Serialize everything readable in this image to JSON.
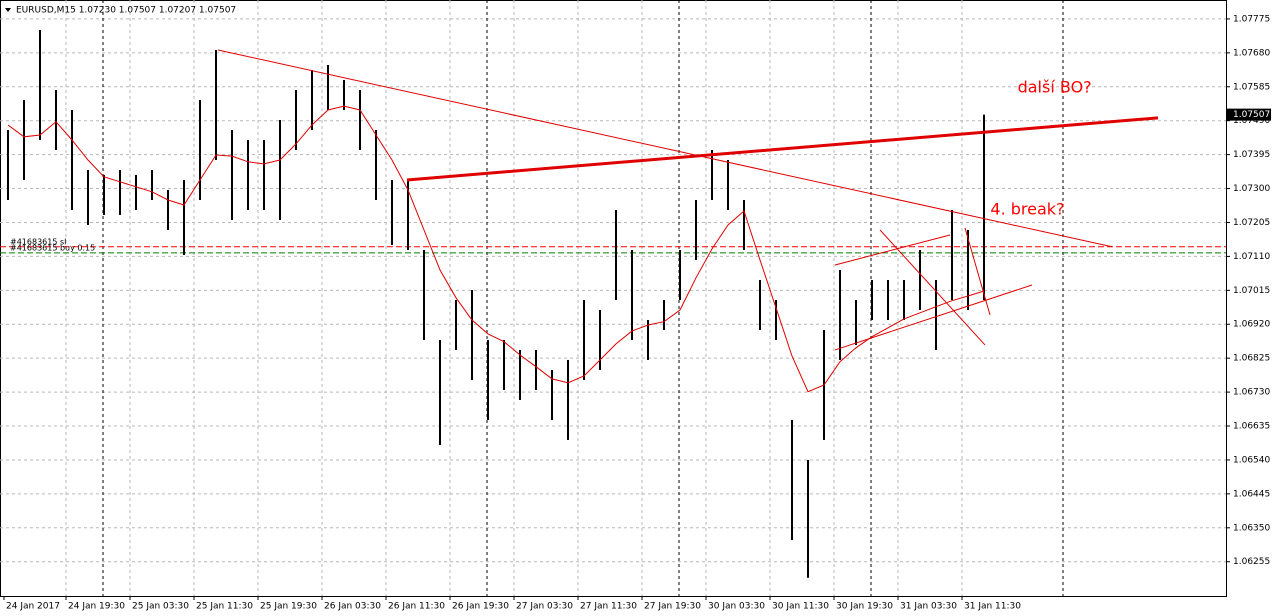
{
  "chart_data": {
    "type": "hilo",
    "title": "EURUSD,M15  1.07230 1.07507 1.07207 1.07507",
    "bar_color": "#000000",
    "high": [
      1.07464,
      1.07548,
      1.07744,
      1.07576,
      1.0752,
      1.07352,
      1.07338,
      1.07352,
      1.07338,
      1.07352,
      1.07296,
      1.07324,
      1.07548,
      1.07688,
      1.07464,
      1.07436,
      1.07436,
      1.07492,
      1.07576,
      1.07632,
      1.07646,
      1.07604,
      1.07576,
      1.07464,
      1.07324,
      1.07324,
      1.07128,
      1.06876,
      1.06988,
      1.07016,
      1.06876,
      1.06876,
      1.06848,
      1.06848,
      1.06792,
      1.0682,
      1.06988,
      1.0696,
      1.0724,
      1.07128,
      1.06932,
      1.06988,
      1.07128,
      1.07268,
      1.07408,
      1.0738,
      1.07268,
      1.07044,
      1.06988,
      1.06652,
      1.0654,
      1.06904,
      1.07072,
      1.06988,
      1.07044,
      1.07044,
      1.07044,
      1.07128,
      1.07044,
      1.0724,
      1.07184,
      1.07507
    ],
    "low": [
      1.07268,
      1.07324,
      1.07436,
      1.07408,
      1.0724,
      1.07198,
      1.07226,
      1.07226,
      1.0724,
      1.07268,
      1.07184,
      1.07114,
      1.07268,
      1.0738,
      1.07212,
      1.0724,
      1.0724,
      1.07212,
      1.07408,
      1.07464,
      1.0752,
      1.0752,
      1.07408,
      1.07268,
      1.07142,
      1.07128,
      1.06876,
      1.06582,
      1.06848,
      1.06764,
      1.06652,
      1.06736,
      1.06708,
      1.06736,
      1.06652,
      1.06596,
      1.06764,
      1.06792,
      1.06988,
      1.06876,
      1.0682,
      1.06904,
      1.06988,
      1.071,
      1.07268,
      1.0724,
      1.07128,
      1.06904,
      1.06876,
      1.06316,
      1.0621,
      1.06596,
      1.0682,
      1.06862,
      1.06932,
      1.06932,
      1.06932,
      1.0696,
      1.06848,
      1.06988,
      1.0696,
      1.06988
    ],
    "ma": {
      "color": "#e00000",
      "values": [
        1.07478,
        1.07445,
        1.0745,
        1.07487,
        1.07436,
        1.0738,
        1.07333,
        1.07319,
        1.07305,
        1.07291,
        1.07268,
        1.07254,
        1.07324,
        1.07394,
        1.07391,
        1.07375,
        1.07369,
        1.0738,
        1.07425,
        1.07478,
        1.0752,
        1.07531,
        1.0752,
        1.0745,
        1.0738,
        1.07296,
        1.07184,
        1.07072,
        1.06994,
        1.06932,
        1.06893,
        1.06871,
        1.06834,
        1.06801,
        1.06767,
        1.06756,
        1.06775,
        1.0682,
        1.06865,
        1.06901,
        1.06918,
        1.06927,
        1.0696,
        1.0705,
        1.07131,
        1.07198,
        1.07237,
        1.071,
        1.06966,
        1.06831,
        1.06731,
        1.0675,
        1.06815,
        1.06854,
        1.06885,
        1.0691,
        1.06935,
        1.06952,
        1.06969,
        1.06986,
        1.06999,
        1.07013
      ]
    },
    "xlim": [
      -0.5,
      76.125
    ],
    "ylim": [
      1.06159,
      1.07828
    ],
    "yticks": [
      1.07775,
      {
        "value": 1.0768,
        "label": "1.07680"
      },
      1.07585,
      {
        "value": 1.0749,
        "label": "1.07490"
      },
      1.07395,
      {
        "value": 1.073,
        "label": "1.07300"
      },
      1.07205,
      {
        "value": 1.0711,
        "label": "1.07110"
      },
      1.07015,
      {
        "value": 1.0692,
        "label": "1.06920"
      },
      1.06825,
      {
        "value": 1.0673,
        "label": "1.06730"
      },
      1.06635,
      {
        "value": 1.0654,
        "label": "1.06540"
      },
      1.06445,
      {
        "value": 1.0635,
        "label": "1.06350"
      },
      1.06255
    ],
    "xticks": [
      {
        "value": -0.25,
        "label": "24 Jan 2017"
      },
      {
        "value": 3.625,
        "label": "24 Jan 19:30"
      },
      {
        "value": 7.625,
        "label": "25 Jan 03:30"
      },
      {
        "value": 11.625,
        "label": "25 Jan 11:30"
      },
      {
        "value": 15.625,
        "label": "25 Jan 19:30"
      },
      {
        "value": 19.625,
        "label": "26 Jan 03:30"
      },
      {
        "value": 23.625,
        "label": "26 Jan 11:30"
      },
      {
        "value": 27.625,
        "label": "26 Jan 19:30"
      },
      {
        "value": 31.625,
        "label": "27 Jan 03:30"
      },
      {
        "value": 35.625,
        "label": "27 Jan 11:30"
      },
      {
        "value": 39.625,
        "label": "27 Jan 19:30"
      },
      {
        "value": 43.625,
        "label": "30 Jan 03:30"
      },
      {
        "value": 47.625,
        "label": "30 Jan 11:30"
      },
      {
        "value": 51.625,
        "label": "30 Jan 19:30"
      },
      {
        "value": 55.625,
        "label": "31 Jan 03:30"
      },
      {
        "value": 59.625,
        "label": "31 Jan 11:30"
      }
    ],
    "period_separators": [
      5.9375,
      29.9375,
      41.9375,
      53.9375,
      65.9375
    ],
    "grid": true,
    "last_price": 1.07507,
    "orders": [
      {
        "label": "#41683615 sl",
        "value": 1.07137,
        "color": "#ff0000"
      },
      {
        "label": "#41683615 buy 0.15",
        "value": 1.0712,
        "color": "#008000"
      }
    ],
    "trendlines": [
      {
        "x": [
          13.125,
          69
        ],
        "y": [
          1.07688,
          1.07137
        ],
        "color": "#e00000",
        "width": 1
      },
      {
        "x": [
          24.94,
          71.875
        ],
        "y": [
          1.07324,
          1.07498
        ],
        "color": "#e00000",
        "width": 3
      },
      {
        "x": [
          51.69,
          58.875
        ],
        "y": [
          1.07086,
          1.0717
        ],
        "color": "#e00000",
        "width": 1
      },
      {
        "x": [
          51.69,
          64
        ],
        "y": [
          1.06848,
          1.0703
        ],
        "color": "#e00000",
        "width": 1
      },
      {
        "x": [
          54.5,
          61.06
        ],
        "y": [
          1.07184,
          1.06862
        ],
        "color": "#e00000",
        "width": 1
      },
      {
        "x": [
          59.81,
          61.375
        ],
        "y": [
          1.0719,
          1.06946
        ],
        "color": "#e00000",
        "width": 1
      }
    ],
    "annotations": [
      {
        "text": "další BO?",
        "x": 63.1,
        "y": 1.07582,
        "color": "#ff0000"
      },
      {
        "text": "4. break?",
        "x": 61.4,
        "y": 1.0724,
        "color": "#ff0000"
      }
    ]
  }
}
